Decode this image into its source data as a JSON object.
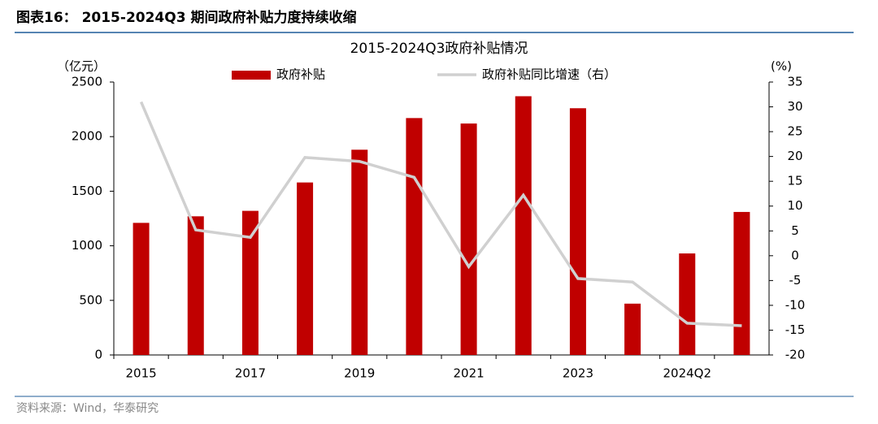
{
  "header": {
    "title": "图表16：  2015-2024Q3 期间政府补贴力度持续收缩"
  },
  "chart_data": {
    "type": "bar-line",
    "title": "2015-2024Q3政府补贴情况",
    "y_label": "（亿元）",
    "y2_label": "(%)",
    "categories": [
      "2015",
      null,
      "2017",
      null,
      "2019",
      null,
      "2021",
      null,
      "2023",
      null,
      "2024Q2",
      null
    ],
    "series": [
      {
        "name": "政府补贴",
        "type": "bar",
        "color": "#c00000",
        "values": [
          1210,
          1270,
          1320,
          1580,
          1880,
          2170,
          2120,
          2370,
          2260,
          470,
          930,
          1310
        ]
      },
      {
        "name": "政府补贴同比增速（右）",
        "type": "line",
        "axis": "y2",
        "color": "#d0d0d0",
        "values": [
          31,
          5.2,
          3.7,
          19.8,
          19,
          15.8,
          -2.2,
          12.2,
          -4.6,
          -5.3,
          -13.6,
          -14.1
        ]
      }
    ],
    "ylim": [
      0,
      2500
    ],
    "yticks": [
      0,
      500,
      1000,
      1500,
      2000,
      2500
    ],
    "y2lim": [
      -20,
      35
    ],
    "y2ticks": [
      -20,
      -15,
      -10,
      -5,
      0,
      5,
      10,
      15,
      20,
      25,
      30,
      35
    ],
    "grid": false
  },
  "source": "资料来源：Wind，华泰研究"
}
